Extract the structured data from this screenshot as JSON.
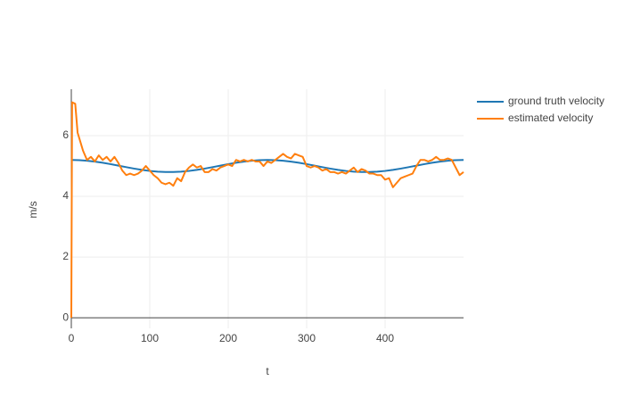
{
  "chart_data": {
    "type": "line",
    "x_label": "t",
    "y_label": "m/s",
    "xlim": [
      0,
      500
    ],
    "ylim": [
      -0.35,
      7.53
    ],
    "xticks": [
      0,
      100,
      200,
      300,
      400
    ],
    "yticks": [
      0,
      2,
      4,
      6
    ],
    "grid": true,
    "legend": "top-right",
    "series": [
      {
        "name": "ground truth velocity",
        "color": "#1f77b4",
        "x": [
          0,
          10,
          20,
          30,
          40,
          50,
          60,
          70,
          80,
          90,
          100,
          110,
          120,
          130,
          140,
          150,
          160,
          170,
          180,
          190,
          200,
          210,
          220,
          230,
          240,
          250,
          260,
          270,
          280,
          290,
          300,
          310,
          320,
          330,
          340,
          350,
          360,
          370,
          380,
          390,
          400,
          410,
          420,
          430,
          440,
          450,
          460,
          470,
          480,
          490,
          500
        ],
        "values": [
          5.2,
          5.194,
          5.175,
          5.146,
          5.107,
          5.062,
          5.013,
          4.963,
          4.915,
          4.873,
          4.838,
          4.814,
          4.802,
          4.802,
          4.814,
          4.838,
          4.873,
          4.915,
          4.963,
          5.013,
          5.062,
          5.107,
          5.146,
          5.175,
          5.194,
          5.2,
          5.194,
          5.175,
          5.146,
          5.107,
          5.062,
          5.013,
          4.963,
          4.915,
          4.873,
          4.838,
          4.814,
          4.802,
          4.802,
          4.814,
          4.838,
          4.873,
          4.915,
          4.963,
          5.013,
          5.062,
          5.107,
          5.146,
          5.175,
          5.194,
          5.2
        ]
      },
      {
        "name": "estimated velocity",
        "color": "#ff7f0e",
        "x": [
          0,
          1,
          5,
          8,
          15,
          20,
          25,
          30,
          35,
          40,
          45,
          50,
          55,
          60,
          65,
          70,
          75,
          80,
          85,
          90,
          95,
          100,
          105,
          110,
          115,
          120,
          125,
          130,
          135,
          140,
          145,
          150,
          155,
          160,
          165,
          170,
          175,
          180,
          185,
          190,
          195,
          200,
          205,
          210,
          215,
          220,
          225,
          230,
          235,
          240,
          245,
          250,
          255,
          260,
          265,
          270,
          275,
          280,
          285,
          290,
          295,
          300,
          305,
          310,
          315,
          320,
          325,
          330,
          335,
          340,
          345,
          350,
          355,
          360,
          365,
          370,
          375,
          380,
          385,
          390,
          395,
          400,
          405,
          410,
          415,
          420,
          425,
          430,
          435,
          440,
          445,
          450,
          455,
          460,
          465,
          470,
          475,
          480,
          485,
          490,
          495,
          500
        ],
        "values": [
          0,
          7.1,
          7.05,
          6.1,
          5.5,
          5.2,
          5.3,
          5.15,
          5.35,
          5.2,
          5.3,
          5.15,
          5.3,
          5.1,
          4.85,
          4.7,
          4.75,
          4.7,
          4.75,
          4.85,
          5.0,
          4.85,
          4.7,
          4.6,
          4.45,
          4.4,
          4.45,
          4.35,
          4.6,
          4.5,
          4.8,
          4.95,
          5.05,
          4.95,
          5.0,
          4.8,
          4.8,
          4.9,
          4.85,
          4.95,
          5.0,
          5.05,
          5.0,
          5.2,
          5.15,
          5.2,
          5.15,
          5.2,
          5.15,
          5.15,
          5.0,
          5.15,
          5.1,
          5.2,
          5.3,
          5.4,
          5.3,
          5.25,
          5.4,
          5.35,
          5.3,
          5.0,
          4.95,
          5.0,
          4.95,
          4.85,
          4.9,
          4.8,
          4.8,
          4.75,
          4.8,
          4.75,
          4.85,
          4.95,
          4.8,
          4.9,
          4.85,
          4.75,
          4.75,
          4.7,
          4.7,
          4.55,
          4.6,
          4.3,
          4.45,
          4.6,
          4.65,
          4.7,
          4.75,
          5.0,
          5.2,
          5.2,
          5.15,
          5.2,
          5.3,
          5.2,
          5.2,
          5.25,
          5.2,
          4.95,
          4.7,
          4.8
        ]
      }
    ]
  }
}
